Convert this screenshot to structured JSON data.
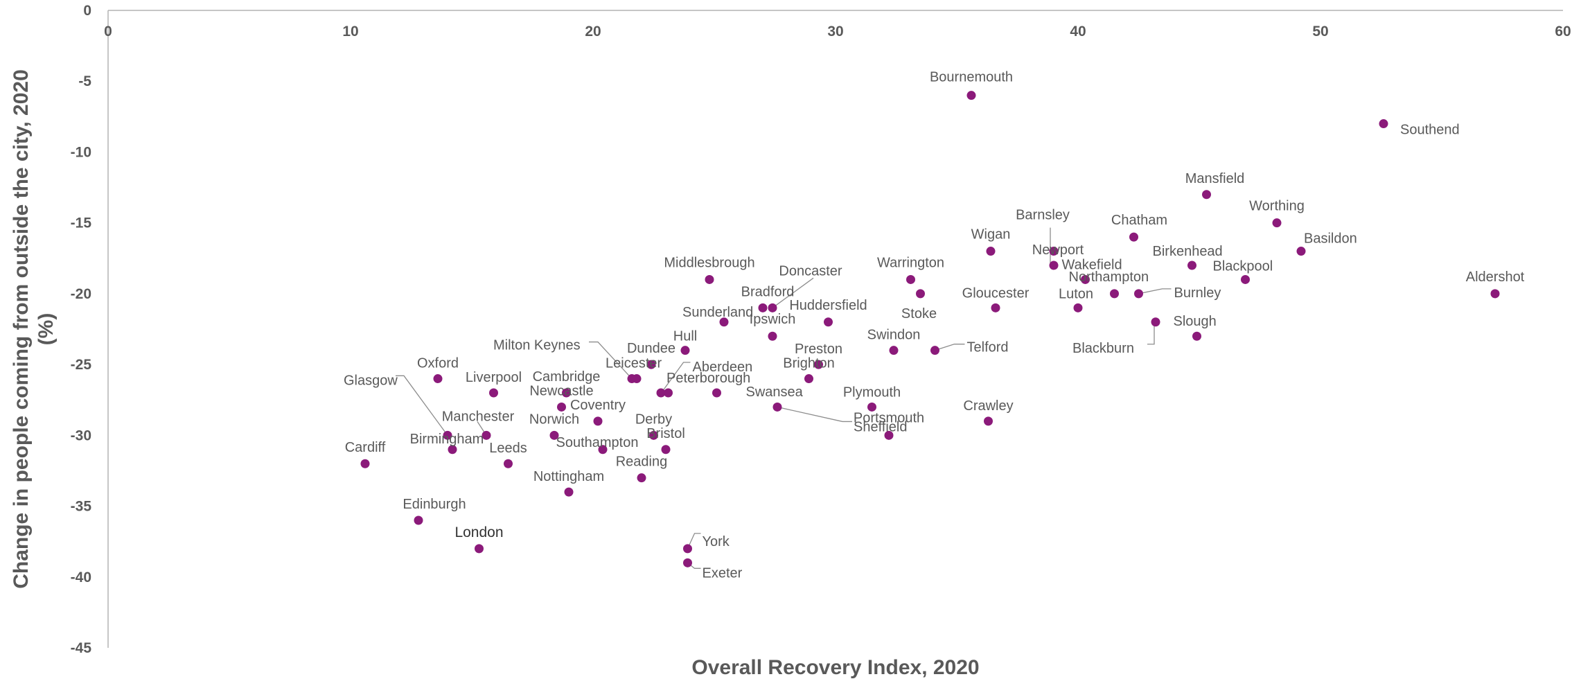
{
  "chart_data": {
    "type": "scatter",
    "title": "",
    "xlabel": "Overall Recovery Index, 2020",
    "ylabel_lines": [
      "Change in people coming from outside the city, 2020",
      "(%)"
    ],
    "xlim": [
      0,
      60
    ],
    "ylim": [
      -45,
      0
    ],
    "x_ticks": [
      0,
      10,
      20,
      30,
      40,
      50,
      60
    ],
    "y_ticks": [
      0,
      -5,
      -10,
      -15,
      -20,
      -25,
      -30,
      -35,
      -40,
      -45
    ],
    "grid": false,
    "legend": "none",
    "marker_color": "#8b1a7a",
    "points": [
      {
        "label": "Bournemouth",
        "x": 35.6,
        "y": -6
      },
      {
        "label": "Southend",
        "x": 52.6,
        "y": -8
      },
      {
        "label": "Mansfield",
        "x": 45.3,
        "y": -13
      },
      {
        "label": "Worthing",
        "x": 48.2,
        "y": -15
      },
      {
        "label": "Chatham",
        "x": 42.3,
        "y": -16
      },
      {
        "label": "Basildon",
        "x": 49.2,
        "y": -17
      },
      {
        "label": "Wigan",
        "x": 36.4,
        "y": -17
      },
      {
        "label": "Barnsley",
        "x": 39.0,
        "y": -17
      },
      {
        "label": "Newport",
        "x": 39.0,
        "y": -18
      },
      {
        "label": "Birkenhead",
        "x": 44.7,
        "y": -18
      },
      {
        "label": "Wakefield",
        "x": 40.3,
        "y": -19
      },
      {
        "label": "Blackpool",
        "x": 46.9,
        "y": -19
      },
      {
        "label": "Warrington",
        "x": 33.1,
        "y": -19
      },
      {
        "label": "Middlesbrough",
        "x": 24.8,
        "y": -19
      },
      {
        "label": "Northampton",
        "x": 41.5,
        "y": -20
      },
      {
        "label": "Burnley",
        "x": 42.5,
        "y": -20
      },
      {
        "label": "Aldershot",
        "x": 57.2,
        "y": -20
      },
      {
        "label": "Stoke",
        "x": 33.5,
        "y": -20
      },
      {
        "label": "Luton",
        "x": 40.0,
        "y": -21
      },
      {
        "label": "Gloucester",
        "x": 36.6,
        "y": -21
      },
      {
        "label": "Doncaster",
        "x": 27.4,
        "y": -21
      },
      {
        "label": "Bradford",
        "x": 27.0,
        "y": -21
      },
      {
        "label": "Sunderland",
        "x": 25.4,
        "y": -22
      },
      {
        "label": "Huddersfield",
        "x": 29.7,
        "y": -22
      },
      {
        "label": "Blackburn",
        "x": 43.2,
        "y": -22
      },
      {
        "label": "Ipswich",
        "x": 27.4,
        "y": -23
      },
      {
        "label": "Slough",
        "x": 44.9,
        "y": -23
      },
      {
        "label": "Hull",
        "x": 23.8,
        "y": -24
      },
      {
        "label": "Swindon",
        "x": 32.4,
        "y": -24
      },
      {
        "label": "Telford",
        "x": 34.1,
        "y": -24
      },
      {
        "label": "Dundee",
        "x": 22.4,
        "y": -25
      },
      {
        "label": "Preston",
        "x": 29.3,
        "y": -25
      },
      {
        "label": "Leicester",
        "x": 21.8,
        "y": -26
      },
      {
        "label": "Milton Keynes",
        "x": 21.6,
        "y": -26
      },
      {
        "label": "Oxford",
        "x": 13.6,
        "y": -26
      },
      {
        "label": "Brighton",
        "x": 28.9,
        "y": -26
      },
      {
        "label": "Liverpool",
        "x": 15.9,
        "y": -27
      },
      {
        "label": "Cambridge",
        "x": 18.9,
        "y": -27
      },
      {
        "label": "Peterborough",
        "x": 22.8,
        "y": -27
      },
      {
        "label": "Aberdeen",
        "x": 23.1,
        "y": -27
      },
      {
        "label": "Swansea",
        "x": 25.1,
        "y": -27
      },
      {
        "label": "Newcastle",
        "x": 18.7,
        "y": -28
      },
      {
        "label": "Plymouth",
        "x": 31.5,
        "y": -28
      },
      {
        "label": "Sheffield",
        "x": 27.6,
        "y": -28
      },
      {
        "label": "Coventry",
        "x": 20.2,
        "y": -29
      },
      {
        "label": "Crawley",
        "x": 36.3,
        "y": -29
      },
      {
        "label": "Glasgow",
        "x": 14.0,
        "y": -30
      },
      {
        "label": "Manchester",
        "x": 15.6,
        "y": -30
      },
      {
        "label": "Norwich",
        "x": 18.4,
        "y": -30
      },
      {
        "label": "Derby",
        "x": 22.5,
        "y": -30
      },
      {
        "label": "Portsmouth",
        "x": 32.2,
        "y": -30
      },
      {
        "label": "Birmingham",
        "x": 14.2,
        "y": -31
      },
      {
        "label": "Southampton",
        "x": 20.4,
        "y": -31
      },
      {
        "label": "Bristol",
        "x": 23.0,
        "y": -31
      },
      {
        "label": "Cardiff",
        "x": 10.6,
        "y": -32
      },
      {
        "label": "Leeds",
        "x": 16.5,
        "y": -32
      },
      {
        "label": "Reading",
        "x": 22.0,
        "y": -33
      },
      {
        "label": "Nottingham",
        "x": 19.0,
        "y": -34
      },
      {
        "label": "Edinburgh",
        "x": 12.8,
        "y": -36
      },
      {
        "label": "London",
        "x": 15.3,
        "y": -38
      },
      {
        "label": "York",
        "x": 23.9,
        "y": -38
      },
      {
        "label": "Exeter",
        "x": 23.9,
        "y": -39
      }
    ]
  }
}
